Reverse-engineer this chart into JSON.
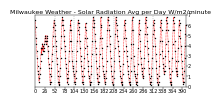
{
  "title": "Milwaukee Weather - Solar Radiation Avg per Day W/m2/minute",
  "values": [
    6.5,
    5.8,
    4.8,
    4.2,
    3.5,
    2.8,
    2.0,
    1.5,
    1.2,
    0.8,
    0.5,
    0.8,
    1.2,
    1.8,
    2.5,
    3.2,
    3.8,
    3.2,
    3.8,
    4.2,
    3.5,
    4.0,
    3.5,
    3.8,
    4.2,
    4.5,
    4.8,
    5.0,
    4.5,
    4.2,
    4.8,
    5.0,
    4.5,
    4.0,
    3.5,
    2.8,
    2.2,
    1.8,
    1.2,
    0.5,
    0.3,
    0.5,
    1.0,
    1.8,
    2.5,
    3.2,
    4.0,
    5.0,
    5.8,
    6.2,
    6.5,
    6.0,
    5.5,
    5.0,
    4.5,
    4.0,
    3.5,
    2.8,
    2.2,
    1.5,
    1.0,
    0.5,
    0.3,
    0.2,
    0.5,
    1.0,
    1.8,
    2.8,
    3.8,
    5.0,
    6.0,
    6.5,
    6.8,
    6.5,
    6.0,
    5.5,
    5.0,
    4.5,
    4.0,
    3.5,
    2.8,
    2.2,
    1.8,
    1.2,
    0.8,
    0.5,
    0.3,
    0.8,
    1.5,
    2.5,
    3.5,
    4.5,
    5.5,
    6.0,
    6.5,
    5.5,
    4.5,
    3.5,
    2.5,
    2.0,
    1.8,
    1.5,
    1.2,
    1.0,
    0.5,
    0.3,
    0.5,
    0.8,
    1.5,
    2.5,
    3.5,
    4.5,
    5.5,
    6.2,
    6.5,
    6.2,
    5.8,
    5.2,
    4.5,
    3.8,
    3.0,
    2.5,
    2.0,
    1.5,
    1.0,
    0.5,
    0.3,
    0.5,
    1.0,
    1.8,
    2.8,
    3.8,
    4.8,
    5.8,
    6.2,
    5.5,
    4.8,
    4.0,
    3.2,
    2.5,
    2.0,
    1.5,
    1.0,
    0.8,
    0.5,
    0.3,
    0.2,
    0.5,
    1.2,
    2.0,
    3.2,
    4.5,
    5.8,
    6.5,
    6.8,
    6.5,
    6.2,
    5.8,
    5.2,
    4.5,
    3.8,
    3.2,
    2.5,
    1.8,
    1.2,
    0.8,
    0.5,
    0.3,
    0.5,
    1.0,
    2.0,
    3.2,
    4.8,
    6.0,
    6.8,
    5.8,
    4.8,
    3.8,
    2.8,
    2.0,
    1.5,
    1.2,
    1.0,
    0.8,
    0.5,
    0.3,
    0.5,
    0.8,
    1.5,
    2.5,
    4.0,
    5.5,
    6.5,
    6.8,
    6.5,
    6.0,
    5.5,
    5.0,
    4.2,
    3.5,
    2.8,
    2.0,
    1.5,
    1.0,
    0.5,
    0.3,
    0.2,
    0.3,
    0.8,
    1.5,
    2.5,
    3.8,
    5.2,
    6.2,
    6.8,
    6.5,
    6.0,
    5.5,
    5.0,
    4.5,
    4.0,
    3.5,
    3.0,
    2.5,
    2.0,
    1.5,
    1.0,
    0.8,
    0.5,
    0.3,
    0.2,
    0.5,
    1.2,
    2.2,
    3.5,
    4.8,
    6.0,
    6.5,
    6.2,
    5.5,
    4.8,
    4.0,
    3.5,
    3.0,
    2.5,
    2.0,
    1.5,
    1.2,
    0.8,
    0.5,
    0.3,
    0.2,
    0.5,
    1.5,
    2.8,
    4.2,
    5.5,
    6.5,
    6.8,
    5.5,
    4.2,
    3.0,
    2.0,
    1.5,
    1.2,
    1.0,
    0.8,
    0.5,
    0.3,
    0.2,
    0.5,
    1.2,
    2.2,
    3.8,
    5.2,
    6.2,
    6.5,
    5.5,
    4.5,
    3.5,
    2.8,
    2.2,
    1.8,
    1.5,
    1.2,
    1.0,
    0.8,
    1.0,
    1.8,
    2.8,
    4.0,
    5.2,
    6.2,
    6.8,
    6.5,
    5.8,
    5.2,
    4.5,
    3.8,
    3.2,
    2.5,
    1.8,
    1.2,
    0.8,
    0.5,
    0.3,
    0.2,
    0.5,
    1.0,
    1.8,
    2.8,
    4.0,
    5.2,
    6.0,
    6.5,
    6.2,
    5.5,
    4.8,
    4.0,
    3.2,
    2.5,
    1.8,
    1.2,
    0.8,
    0.5,
    0.3,
    0.2,
    0.5,
    1.0,
    2.0,
    3.2,
    4.5,
    5.8,
    6.5,
    6.2,
    5.5,
    4.5,
    3.5,
    2.8,
    2.2,
    1.8,
    1.5,
    1.2,
    1.5,
    2.0,
    3.0,
    4.2,
    5.5,
    6.5,
    6.8,
    6.2,
    5.5,
    4.5,
    3.5,
    2.5,
    1.8,
    1.2,
    0.8,
    0.5,
    0.3,
    0.2,
    0.5,
    1.5,
    2.8,
    4.2,
    5.5,
    6.5,
    6.8,
    6.2,
    5.5,
    4.5,
    3.5,
    2.5,
    1.8,
    1.5,
    1.2,
    1.0,
    1.5,
    2.5,
    3.8,
    5.0,
    6.0,
    6.5,
    6.2,
    5.5,
    4.8,
    4.0,
    3.2,
    2.5,
    1.8,
    1.2,
    0.8,
    0.5,
    0.3,
    0.5,
    1.5,
    2.8,
    4.0,
    5.2,
    6.0
  ],
  "grid_positions": [
    52,
    104,
    156,
    208,
    260,
    312
  ],
  "line_color": "#ff0000",
  "marker_color": "#000000",
  "background_color": "#ffffff",
  "grid_color": "#999999",
  "ylim": [
    0,
    7
  ],
  "ytick_labels": [
    "7",
    "6",
    "5",
    "4",
    "3",
    "2",
    "1",
    "0"
  ],
  "title_fontsize": 4.5,
  "tick_fontsize": 3.5
}
